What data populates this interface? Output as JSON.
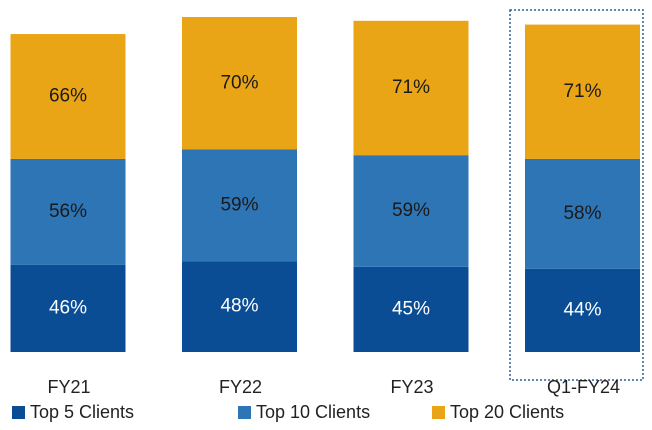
{
  "chart_data": {
    "type": "stacked_bar",
    "categories": [
      "FY21",
      "FY22",
      "FY23",
      "Q1-FY24"
    ],
    "series": [
      {
        "name": "Top 5 Clients",
        "color": "#0b4d95",
        "values": [
          46,
          48,
          45,
          44
        ],
        "value_labels": [
          "46%",
          "48%",
          "45%",
          "44%"
        ]
      },
      {
        "name": "Top 10 Clients",
        "color": "#2e75b6",
        "values": [
          56,
          59,
          59,
          58
        ],
        "value_labels": [
          "56%",
          "59%",
          "59%",
          "58%"
        ]
      },
      {
        "name": "Top 20 Clients",
        "color": "#e9a516",
        "values": [
          66,
          70,
          71,
          71
        ],
        "value_labels": [
          "66%",
          "70%",
          "71%",
          "71%"
        ]
      }
    ],
    "legend": "bottom"
  }
}
